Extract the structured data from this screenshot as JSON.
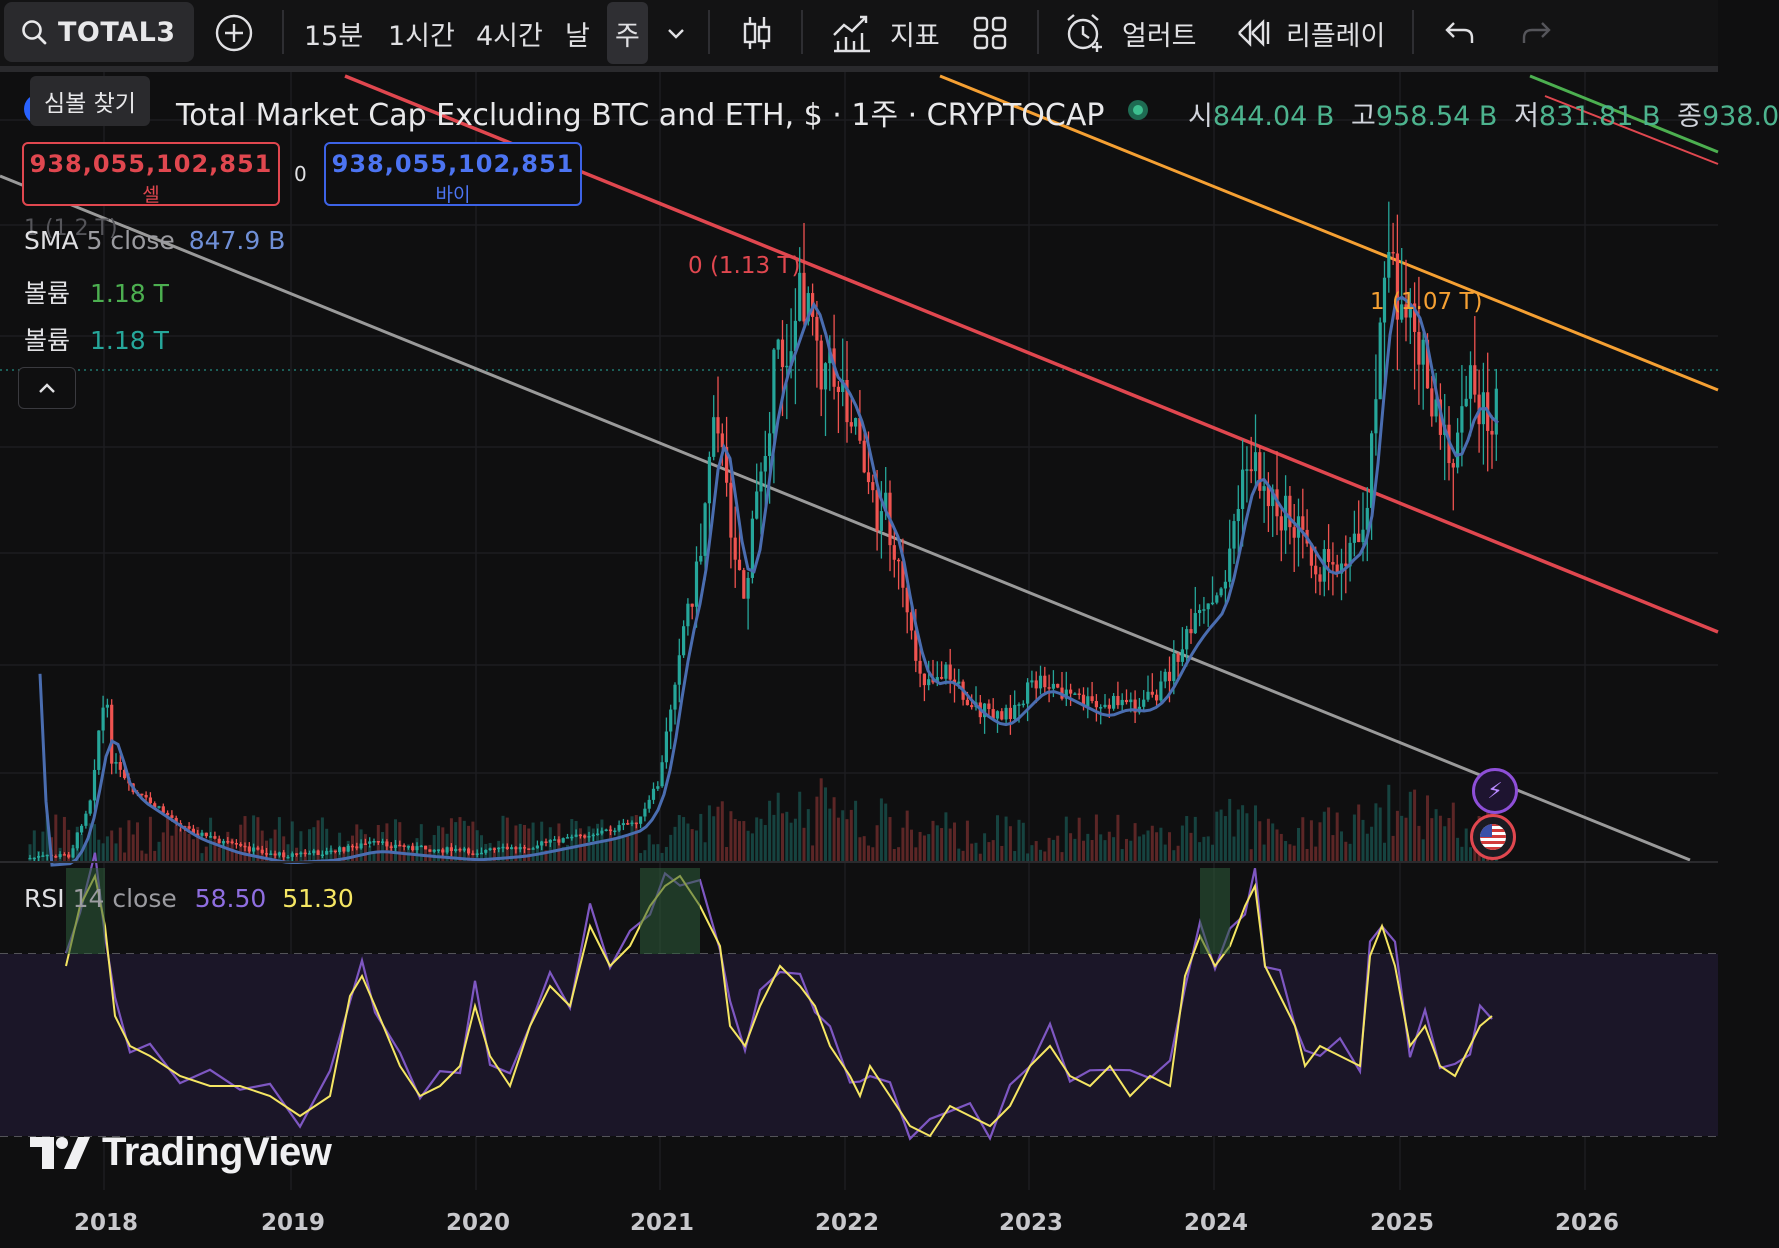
{
  "toolbar": {
    "symbol": "TOTAL3",
    "intervals": [
      "15분",
      "1시간",
      "4시간",
      "날",
      "주"
    ],
    "active_interval": "주",
    "indicators_label": "지표",
    "alerts_label": "얼러트",
    "replay_label": "리플레이"
  },
  "tooltip": "심볼 찾기",
  "legend": {
    "title": "Total Market Cap Excluding BTC and ETH, $ · 1주 · CRYPTOCAP",
    "open_label": "시",
    "open": "844.04 B",
    "high_label": "고",
    "high": "958.54 B",
    "low_label": "저",
    "low": "831.81 B",
    "close_label": "종",
    "close": "938.0"
  },
  "trade": {
    "sell_price": "938,055,102,851",
    "sell_label": "셀",
    "spread": "0",
    "buy_price": "938,055,102,851",
    "buy_label": "바이"
  },
  "indicators": {
    "hidden_label": "1 (1.2 T)",
    "sma_name": "SMA",
    "sma_params": "5 close",
    "sma_value": "847.9 B",
    "vol1_name": "볼륨",
    "vol1_value": "1.18 T",
    "vol2_name": "볼륨",
    "vol2_value": "1.18 T",
    "rsi_name": "RSI",
    "rsi_params": "14 close",
    "rsi_value": "58.50",
    "rsi_ma_value": "51.30"
  },
  "chart_labels": {
    "fib0": "0 (1.13 T)",
    "fib1": "1 (1.07 T)"
  },
  "colors": {
    "up": "#26a69a",
    "down": "#ef5350",
    "sma": "#4a6db0",
    "rsi": "#7e57c2",
    "rsi_ma": "#f5e663",
    "red_line": "#e0474f",
    "orange_line": "#f5a033",
    "gray_line": "#9a9a9a"
  },
  "x_axis": [
    "2018",
    "2019",
    "2020",
    "2021",
    "2022",
    "2023",
    "2024",
    "2025",
    "2026"
  ],
  "watermark": "TradingView"
}
